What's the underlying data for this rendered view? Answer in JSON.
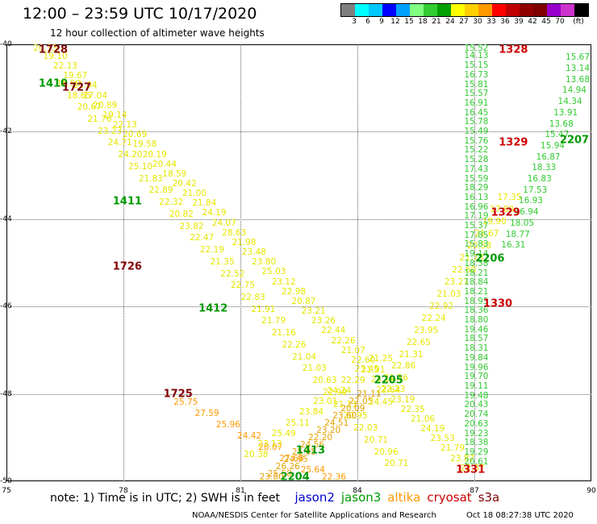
{
  "title": "12:00  –  23:59 UTC 10/17/2020",
  "subtitle": "12 hour collection of altimeter wave heights",
  "colorbar": {
    "colors": [
      "#7f7f7f",
      "#00ffff",
      "#00c8ff",
      "#0000ff",
      "#00a0ff",
      "#80ff80",
      "#33cc33",
      "#00a000",
      "#ffff00",
      "#ffd000",
      "#ff9900",
      "#ff0000",
      "#c00000",
      "#900000",
      "#800000",
      "#9900cc",
      "#cc33cc",
      "#000000"
    ],
    "ticks": [
      "3",
      "6",
      "9",
      "12",
      "15",
      "18",
      "21",
      "24",
      "27",
      "30",
      "33",
      "36",
      "39",
      "42",
      "45",
      "70",
      "(ft)"
    ]
  },
  "axes": {
    "x_ticks": [
      "75",
      "78",
      "81",
      "84",
      "87",
      "90"
    ],
    "y_ticks": [
      "-40",
      "-42",
      "-44",
      "-46",
      "-48",
      "-50"
    ]
  },
  "legend": {
    "note": "note:  1) Time is in UTC;  2) SWH is in feet",
    "satellites": [
      {
        "name": "jason2",
        "color": "#0000cc"
      },
      {
        "name": "jason3",
        "color": "#009900"
      },
      {
        "name": "altika",
        "color": "#ff9900"
      },
      {
        "name": "cryosat",
        "color": "#cc0000"
      },
      {
        "name": "s3a",
        "color": "#800000"
      }
    ]
  },
  "credit": "NOAA/NESDIS Center for Satellite Applications and Research",
  "timestamp": "Oct 18 08:27:38 UTC 2020",
  "map_data": {
    "time_labels": [
      {
        "text": "1728",
        "lon": 76.2,
        "lat": -40.05,
        "color": "#800000"
      },
      {
        "text": "1410",
        "lon": 76.2,
        "lat": -40.9,
        "color": "#009900"
      },
      {
        "text": "1727",
        "lon": 76.8,
        "lat": -41.0,
        "color": "#800000"
      },
      {
        "text": "1411",
        "lon": 78.1,
        "lat": -43.6,
        "color": "#009900"
      },
      {
        "text": "1726",
        "lon": 78.1,
        "lat": -45.1,
        "color": "#800000"
      },
      {
        "text": "1412",
        "lon": 80.3,
        "lat": -46.05,
        "color": "#009900"
      },
      {
        "text": "1725",
        "lon": 79.4,
        "lat": -48.0,
        "color": "#800000"
      },
      {
        "text": "2205",
        "lon": 84.8,
        "lat": -47.7,
        "color": "#009900"
      },
      {
        "text": "1413",
        "lon": 82.8,
        "lat": -49.3,
        "color": "#009900"
      },
      {
        "text": "2204",
        "lon": 82.4,
        "lat": -50.0,
        "color": "#009900"
      },
      {
        "text": "1328",
        "lon": 88.0,
        "lat": -40.05,
        "color": "#cc0000"
      },
      {
        "text": "1329",
        "lon": 88.0,
        "lat": -42.25,
        "color": "#cc0000"
      },
      {
        "text": "2207",
        "lon": 89.7,
        "lat": -42.2,
        "color": "#009900"
      },
      {
        "text": "1329",
        "lon": 87.8,
        "lat": -43.85,
        "color": "#cc0000"
      },
      {
        "text": "2206",
        "lon": 87.4,
        "lat": -44.9,
        "color": "#009900"
      },
      {
        "text": "1330",
        "lon": 87.6,
        "lat": -45.95,
        "color": "#cc0000"
      },
      {
        "text": "1331",
        "lon": 86.9,
        "lat": -49.75,
        "color": "#cc0000"
      }
    ],
    "tracks": [
      {
        "name": "jason3-track-a",
        "lon": [
          76.0,
          86.95
        ],
        "lat": [
          -40.05,
          -49.7
        ],
        "color": "#e6e600",
        "start_offset": [
          -0.3,
          0
        ],
        "values": [
          "20.33",
          "19.10",
          "22.13",
          "19.67",
          "21.04",
          "17.04",
          "20.89",
          "19.14",
          "22.13",
          "20.69",
          "19.58",
          "20.19",
          "20.44",
          "18.59",
          "20.42",
          "21.00",
          "21.84",
          "24.19",
          "24.07",
          "28.63",
          "21.98",
          "23.48",
          "23.80",
          "25.03",
          "23.12",
          "22.98",
          "20.87",
          "23.21",
          "23.26",
          "22.44",
          "22.26",
          "21.07",
          "22.60",
          "21.91",
          "24.19",
          "22.23",
          "23.19",
          "22.35",
          "21.06",
          "24.19",
          "23.53",
          "21.79",
          "23.87",
          "22.87"
        ]
      },
      {
        "name": "jason3-track-b",
        "lon": [
          76.6,
          85.0
        ],
        "lat": [
          -40.9,
          -49.6
        ],
        "color": "#e6e600",
        "values": [
          "16.59",
          "18.65",
          "20.67",
          "21.76",
          "23.23",
          "24.71",
          "24.20",
          "25.10",
          "21.83",
          "22.89",
          "22.32",
          "20.82",
          "23.82",
          "22.47",
          "22.19",
          "21.35",
          "22.52",
          "22.75",
          "22.83",
          "21.91",
          "21.79",
          "21.16",
          "22.26",
          "21.04",
          "21.03",
          "20.63",
          "22.99",
          "21.11",
          "20.95",
          "22.03",
          "20.71",
          "20.96",
          "20.71"
        ]
      },
      {
        "name": "altika-track",
        "lon": [
          79.6,
          83.4
        ],
        "lat": [
          -48.2,
          -50.0
        ],
        "color": "#ff9900",
        "values": [
          "25.75",
          "27.59",
          "25.96",
          "24.42",
          "28.07",
          "27.68",
          "25.64",
          "22.36"
        ]
      },
      {
        "name": "altika-track-b",
        "lon": [
          81.8,
          84.3
        ],
        "lat": [
          -50.0,
          -48.0
        ],
        "color": "#e6a000",
        "values": [
          "23.80",
          "25.58",
          "26.26",
          "24.95",
          "25.05",
          "24.56",
          "22.20",
          "23.20",
          "24.51",
          "23.60",
          "20.09",
          "22.05",
          "21.11"
        ]
      },
      {
        "name": "jason2-cross",
        "lon": [
          81.4,
          84.6
        ],
        "lat": [
          -49.4,
          -47.2
        ],
        "color": "#e6e600",
        "values": [
          "20.38",
          "23.13",
          "25.49",
          "25.11",
          "23.84",
          "23.01",
          "24.24",
          "22.29",
          "23.45",
          "21.25"
        ]
      },
      {
        "name": "cryosat-track",
        "lon": [
          84.6,
          87.9
        ],
        "lat": [
          -48.2,
          -43.5
        ],
        "color": "#e6e600",
        "values": [
          "24.45",
          "22.64",
          "21.56",
          "22.86",
          "21.31",
          "22.65",
          "23.95",
          "22.24",
          "22.92",
          "21.03",
          "23.27",
          "22.60",
          "21.73",
          "20.58",
          "21.67",
          "19.90",
          "17.80",
          "17.35"
        ]
      },
      {
        "name": "s3a-track",
        "lon": [
          87.05,
          87.05
        ],
        "lat": [
          -40.05,
          -49.55
        ],
        "color": "#33cc33",
        "values": [
          "15.52",
          "14.13",
          "15.15",
          "16.73",
          "15.81",
          "15.57",
          "16.91",
          "16.45",
          "15.78",
          "15.49",
          "15.76",
          "15.22",
          "15.28",
          "17.43",
          "15.59",
          "18.29",
          "16.13",
          "16.96",
          "17.19",
          "15.37",
          "17.85",
          "15.83",
          "19.14",
          "18.38",
          "18.21",
          "18.84",
          "18.21",
          "18.95",
          "18.36",
          "18.80",
          "19.46",
          "18.57",
          "18.31",
          "19.84",
          "19.96",
          "19.70",
          "19.11",
          "19.48",
          "20.43",
          "20.74",
          "20.63",
          "19.23",
          "18.38",
          "19.29",
          "20.61"
        ]
      },
      {
        "name": "s3a-track-b",
        "lon": [
          88.0,
          89.9
        ],
        "lat": [
          -44.6,
          -40.3
        ],
        "color": "#33cc33",
        "values": [
          "16.31",
          "18.77",
          "18.05",
          "16.94",
          "16.93",
          "17.53",
          "16.83",
          "18.33",
          "16.87",
          "15.94",
          "15.47",
          "13.68",
          "13.91",
          "14.34",
          "14.94",
          "13.68",
          "13.14",
          "15.67"
        ]
      }
    ]
  }
}
